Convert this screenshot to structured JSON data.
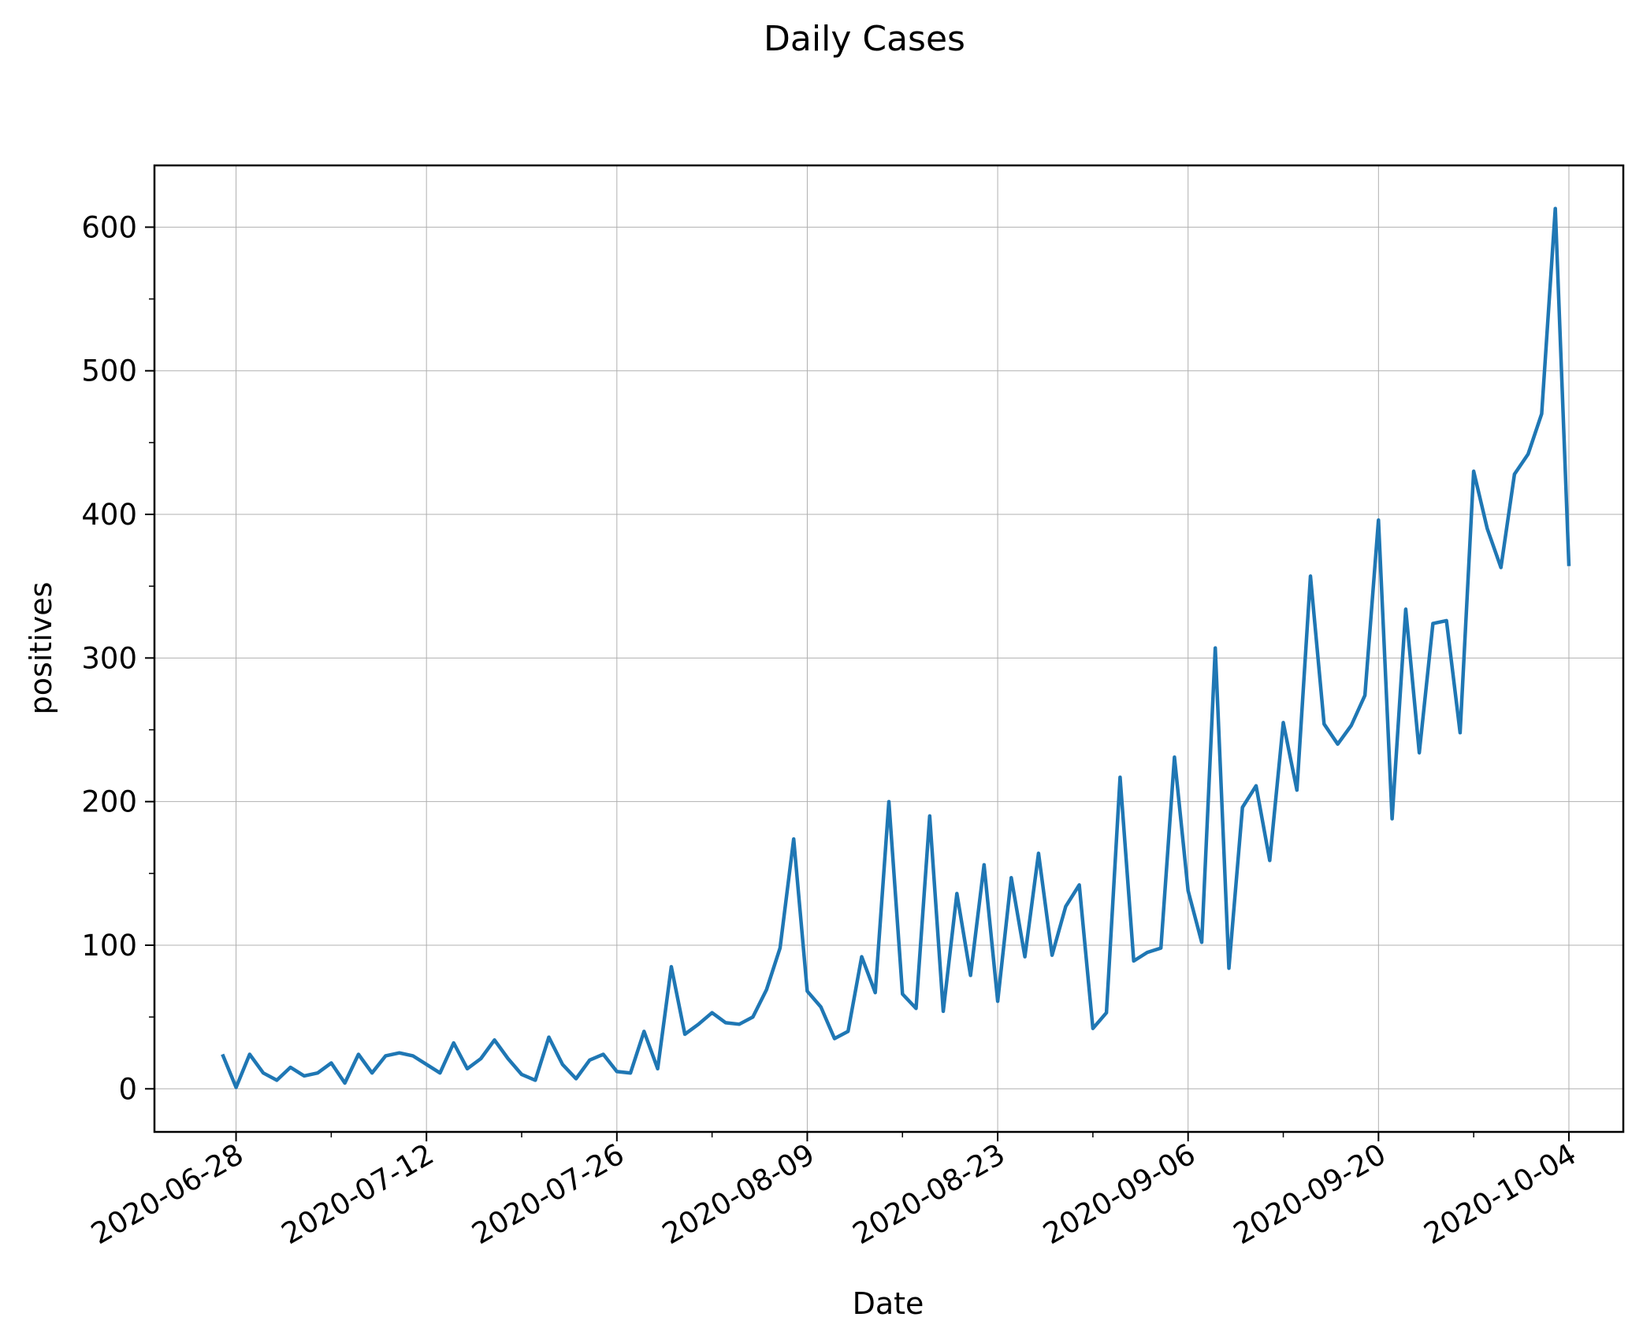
{
  "chart_data": {
    "type": "line",
    "title": "Daily Cases",
    "xlabel": "Date",
    "ylabel": "positives",
    "x_ticks": [
      "2020-06-28",
      "2020-07-12",
      "2020-07-26",
      "2020-08-09",
      "2020-08-23",
      "2020-09-06",
      "2020-09-20",
      "2020-10-04"
    ],
    "y_ticks": [
      0,
      100,
      200,
      300,
      400,
      500,
      600
    ],
    "ylim": [
      -30,
      643
    ],
    "xlim": [
      "2020-06-22",
      "2020-10-08"
    ],
    "grid": true,
    "line_color": "#1f77b4",
    "series": [
      {
        "x": [
          "2020-06-27",
          "2020-06-28",
          "2020-06-29",
          "2020-06-30",
          "2020-07-01",
          "2020-07-02",
          "2020-07-03",
          "2020-07-04",
          "2020-07-05",
          "2020-07-06",
          "2020-07-07",
          "2020-07-08",
          "2020-07-09",
          "2020-07-10",
          "2020-07-11",
          "2020-07-12",
          "2020-07-13",
          "2020-07-14",
          "2020-07-15",
          "2020-07-16",
          "2020-07-17",
          "2020-07-18",
          "2020-07-19",
          "2020-07-20",
          "2020-07-21",
          "2020-07-22",
          "2020-07-23",
          "2020-07-24",
          "2020-07-25",
          "2020-07-26",
          "2020-07-27",
          "2020-07-28",
          "2020-07-29",
          "2020-07-30",
          "2020-07-31",
          "2020-08-01",
          "2020-08-02",
          "2020-08-03",
          "2020-08-04",
          "2020-08-05",
          "2020-08-06",
          "2020-08-07",
          "2020-08-08",
          "2020-08-09",
          "2020-08-10",
          "2020-08-11",
          "2020-08-12",
          "2020-08-13",
          "2020-08-14",
          "2020-08-15",
          "2020-08-16",
          "2020-08-17",
          "2020-08-18",
          "2020-08-19",
          "2020-08-20",
          "2020-08-21",
          "2020-08-22",
          "2020-08-23",
          "2020-08-24",
          "2020-08-25",
          "2020-08-26",
          "2020-08-27",
          "2020-08-28",
          "2020-08-29",
          "2020-08-30",
          "2020-08-31",
          "2020-09-01",
          "2020-09-02",
          "2020-09-03",
          "2020-09-04",
          "2020-09-05",
          "2020-09-06",
          "2020-09-07",
          "2020-09-08",
          "2020-09-09",
          "2020-09-10",
          "2020-09-11",
          "2020-09-12",
          "2020-09-13",
          "2020-09-14",
          "2020-09-15",
          "2020-09-16",
          "2020-09-17",
          "2020-09-18",
          "2020-09-19",
          "2020-09-20",
          "2020-09-21",
          "2020-09-22",
          "2020-09-23",
          "2020-09-24",
          "2020-09-25",
          "2020-09-26",
          "2020-09-27",
          "2020-09-28",
          "2020-09-29",
          "2020-09-30",
          "2020-10-01",
          "2020-10-02",
          "2020-10-03",
          "2020-10-04"
        ],
        "y": [
          24,
          1,
          24,
          11,
          6,
          15,
          9,
          11,
          18,
          4,
          24,
          11,
          23,
          25,
          23,
          17,
          11,
          32,
          14,
          21,
          34,
          21,
          10,
          6,
          36,
          17,
          7,
          20,
          24,
          12,
          11,
          40,
          14,
          85,
          38,
          45,
          53,
          46,
          45,
          50,
          69,
          98,
          174,
          68,
          57,
          35,
          40,
          92,
          67,
          200,
          66,
          56,
          190,
          54,
          136,
          79,
          156,
          61,
          147,
          92,
          164,
          93,
          127,
          142,
          42,
          53,
          217,
          89,
          95,
          98,
          231,
          138,
          102,
          307,
          84,
          196,
          211,
          159,
          255,
          208,
          357,
          254,
          240,
          253,
          274,
          396,
          188,
          334,
          234,
          324,
          326,
          248,
          430,
          390,
          363,
          428,
          442,
          470,
          613,
          364
        ]
      }
    ]
  }
}
